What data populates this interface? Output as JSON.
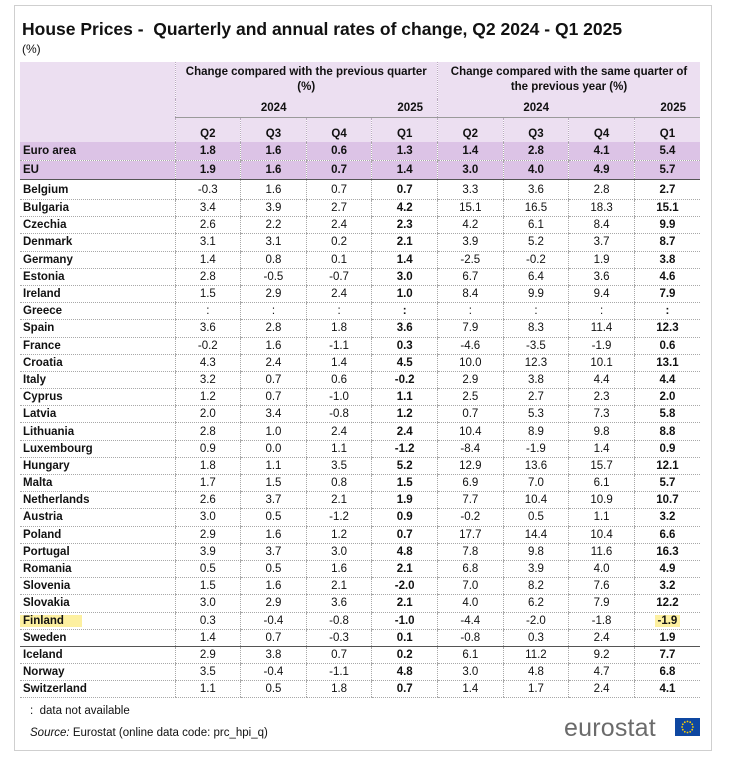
{
  "header": {
    "title": "House Prices -  Quarterly and annual rates of change, Q2 2024 - Q1 2025",
    "unit": "(%)"
  },
  "table": {
    "groups": [
      {
        "label": "Change compared with the previous quarter (%)",
        "years": [
          "2024",
          "2025"
        ]
      },
      {
        "label": "Change compared with the same quarter of the previous year (%)",
        "years": [
          "2024",
          "2025"
        ]
      }
    ],
    "quarters": [
      "Q2",
      "Q3",
      "Q4",
      "Q1",
      "Q2",
      "Q3",
      "Q4",
      "Q1"
    ],
    "sections": [
      {
        "rows": [
          {
            "name": "Euro area",
            "values": [
              "1.8",
              "1.6",
              "0.6",
              "1.3",
              "1.4",
              "2.8",
              "4.1",
              "5.4"
            ]
          },
          {
            "name": "EU",
            "values": [
              "1.9",
              "1.6",
              "0.7",
              "1.4",
              "3.0",
              "4.0",
              "4.9",
              "5.7"
            ]
          }
        ]
      },
      {
        "rows": [
          {
            "name": "Belgium",
            "values": [
              "-0.3",
              "1.6",
              "0.7",
              "0.7",
              "3.3",
              "3.6",
              "2.8",
              "2.7"
            ]
          },
          {
            "name": "Bulgaria",
            "values": [
              "3.4",
              "3.9",
              "2.7",
              "4.2",
              "15.1",
              "16.5",
              "18.3",
              "15.1"
            ]
          },
          {
            "name": "Czechia",
            "values": [
              "2.6",
              "2.2",
              "2.4",
              "2.3",
              "4.2",
              "6.1",
              "8.4",
              "9.9"
            ]
          },
          {
            "name": "Denmark",
            "values": [
              "3.1",
              "3.1",
              "0.2",
              "2.1",
              "3.9",
              "5.2",
              "3.7",
              "8.7"
            ]
          },
          {
            "name": "Germany",
            "values": [
              "1.4",
              "0.8",
              "0.1",
              "1.4",
              "-2.5",
              "-0.2",
              "1.9",
              "3.8"
            ]
          },
          {
            "name": "Estonia",
            "values": [
              "2.8",
              "-0.5",
              "-0.7",
              "3.0",
              "6.7",
              "6.4",
              "3.6",
              "4.6"
            ]
          },
          {
            "name": "Ireland",
            "values": [
              "1.5",
              "2.9",
              "2.4",
              "1.0",
              "8.4",
              "9.9",
              "9.4",
              "7.9"
            ]
          },
          {
            "name": "Greece",
            "values": [
              ":",
              ":",
              ":",
              ":",
              ":",
              ":",
              ":",
              ":"
            ]
          },
          {
            "name": "Spain",
            "values": [
              "3.6",
              "2.8",
              "1.8",
              "3.6",
              "7.9",
              "8.3",
              "11.4",
              "12.3"
            ]
          },
          {
            "name": "France",
            "values": [
              "-0.2",
              "1.6",
              "-1.1",
              "0.3",
              "-4.6",
              "-3.5",
              "-1.9",
              "0.6"
            ]
          },
          {
            "name": "Croatia",
            "values": [
              "4.3",
              "2.4",
              "1.4",
              "4.5",
              "10.0",
              "12.3",
              "10.1",
              "13.1"
            ]
          },
          {
            "name": "Italy",
            "values": [
              "3.2",
              "0.7",
              "0.6",
              "-0.2",
              "2.9",
              "3.8",
              "4.4",
              "4.4"
            ]
          },
          {
            "name": "Cyprus",
            "values": [
              "1.2",
              "0.7",
              "-1.0",
              "1.1",
              "2.5",
              "2.7",
              "2.3",
              "2.0"
            ]
          },
          {
            "name": "Latvia",
            "values": [
              "2.0",
              "3.4",
              "-0.8",
              "1.2",
              "0.7",
              "5.3",
              "7.3",
              "5.8"
            ]
          },
          {
            "name": "Lithuania",
            "values": [
              "2.8",
              "1.0",
              "2.4",
              "2.4",
              "10.4",
              "8.9",
              "9.8",
              "8.8"
            ]
          },
          {
            "name": "Luxembourg",
            "values": [
              "0.9",
              "0.0",
              "1.1",
              "-1.2",
              "-8.4",
              "-1.9",
              "1.4",
              "0.9"
            ]
          },
          {
            "name": "Hungary",
            "values": [
              "1.8",
              "1.1",
              "3.5",
              "5.2",
              "12.9",
              "13.6",
              "15.7",
              "12.1"
            ]
          },
          {
            "name": "Malta",
            "values": [
              "1.7",
              "1.5",
              "0.8",
              "1.5",
              "6.9",
              "7.0",
              "6.1",
              "5.7"
            ]
          },
          {
            "name": "Netherlands",
            "values": [
              "2.6",
              "3.7",
              "2.1",
              "1.9",
              "7.7",
              "10.4",
              "10.9",
              "10.7"
            ]
          },
          {
            "name": "Austria",
            "values": [
              "3.0",
              "0.5",
              "-1.2",
              "0.9",
              "-0.2",
              "0.5",
              "1.1",
              "3.2"
            ]
          },
          {
            "name": "Poland",
            "values": [
              "2.9",
              "1.6",
              "1.2",
              "0.7",
              "17.7",
              "14.4",
              "10.4",
              "6.6"
            ]
          },
          {
            "name": "Portugal",
            "values": [
              "3.9",
              "3.7",
              "3.0",
              "4.8",
              "7.8",
              "9.8",
              "11.6",
              "16.3"
            ]
          },
          {
            "name": "Romania",
            "values": [
              "0.5",
              "0.5",
              "1.6",
              "2.1",
              "6.8",
              "3.9",
              "4.0",
              "4.9"
            ]
          },
          {
            "name": "Slovenia",
            "values": [
              "1.5",
              "1.6",
              "2.1",
              "-2.0",
              "7.0",
              "8.2",
              "7.6",
              "3.2"
            ]
          },
          {
            "name": "Slovakia",
            "values": [
              "3.0",
              "2.9",
              "3.6",
              "2.1",
              "4.0",
              "6.2",
              "7.9",
              "12.2"
            ]
          },
          {
            "name": "Finland",
            "values": [
              "0.3",
              "-0.4",
              "-0.8",
              "-1.0",
              "-4.4",
              "-2.0",
              "-1.8",
              "-1.9"
            ]
          },
          {
            "name": "Sweden",
            "values": [
              "1.4",
              "0.7",
              "-0.3",
              "0.1",
              "-0.8",
              "0.3",
              "2.4",
              "1.9"
            ]
          }
        ]
      },
      {
        "rows": [
          {
            "name": "Iceland",
            "values": [
              "2.9",
              "3.8",
              "0.7",
              "0.2",
              "6.1",
              "11.2",
              "9.2",
              "7.7"
            ]
          },
          {
            "name": "Norway",
            "values": [
              "3.5",
              "-0.4",
              "-1.1",
              "4.8",
              "3.0",
              "4.8",
              "4.7",
              "6.8"
            ]
          },
          {
            "name": "Switzerland",
            "values": [
              "1.1",
              "0.5",
              "1.8",
              "0.7",
              "1.4",
              "1.7",
              "2.4",
              "4.1"
            ]
          }
        ]
      }
    ]
  },
  "footer": {
    "note": ":  data not available",
    "source_label": "Source:",
    "source_text": " Eurostat (online data code: prc_hpi_q)",
    "logo": "eurostat"
  }
}
